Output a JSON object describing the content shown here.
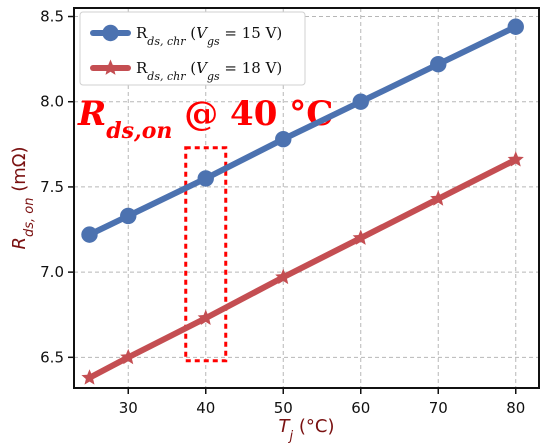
{
  "chart_data": {
    "type": "line",
    "xlabel": "Tj (°C)",
    "ylabel": "Rds,on (mΩ)",
    "x_ticks": [
      30,
      40,
      50,
      60,
      70,
      80
    ],
    "y_ticks": [
      6.5,
      7.0,
      7.5,
      8.0,
      8.5
    ],
    "xlim": [
      23,
      83
    ],
    "ylim": [
      6.32,
      8.55
    ],
    "grid": true,
    "legend_position": "top-left",
    "series": [
      {
        "name": "Rds,chr (Vgs = 15 V)",
        "color": "#4c72b0",
        "marker": "circle",
        "points": [
          {
            "x": 25,
            "y": 7.22
          },
          {
            "x": 30,
            "y": 7.33
          },
          {
            "x": 40,
            "y": 7.55
          },
          {
            "x": 50,
            "y": 7.78
          },
          {
            "x": 60,
            "y": 8.0
          },
          {
            "x": 70,
            "y": 8.22
          },
          {
            "x": 80,
            "y": 8.44
          }
        ]
      },
      {
        "name": "Rds,chr (Vgs = 18 V)",
        "color": "#c44e52",
        "marker": "star",
        "points": [
          {
            "x": 25,
            "y": 6.38
          },
          {
            "x": 30,
            "y": 6.5
          },
          {
            "x": 40,
            "y": 6.73
          },
          {
            "x": 50,
            "y": 6.97
          },
          {
            "x": 60,
            "y": 7.2
          },
          {
            "x": 70,
            "y": 7.43
          },
          {
            "x": 80,
            "y": 7.66
          }
        ]
      }
    ],
    "annotation": {
      "text": "Rds,on @ 40 °C",
      "color": "#ff0000",
      "highlight_x": 40,
      "highlight_y_range": [
        6.48,
        7.73
      ]
    }
  }
}
